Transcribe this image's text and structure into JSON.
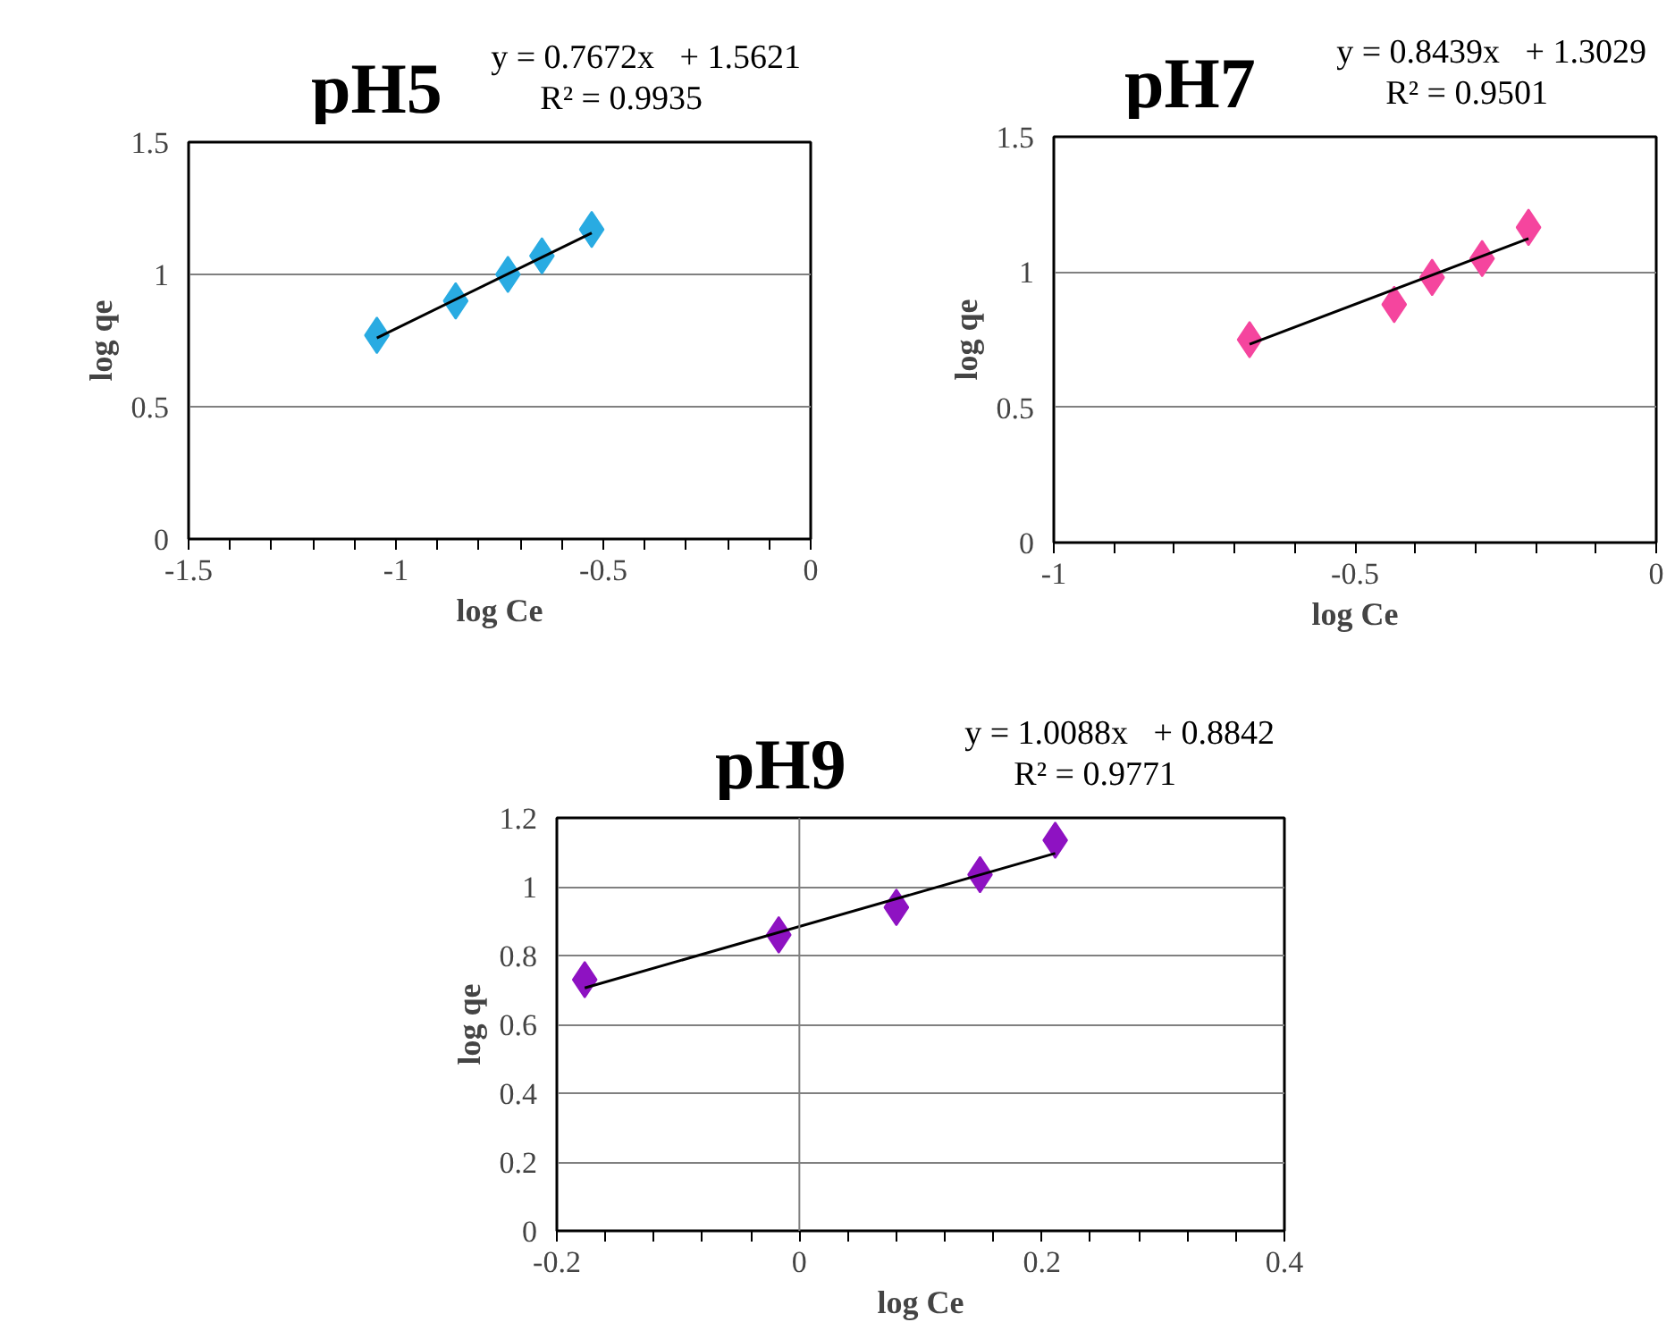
{
  "chart_data": [
    {
      "type": "scatter",
      "title": "pH5",
      "xlabel": "log Ce",
      "ylabel": "log qe",
      "annotations": [
        "y = 0.7672x   + 1.5621",
        "R² = 0.9935"
      ],
      "xlim": [
        -1.5,
        0
      ],
      "xticks": [
        -1.5,
        -1,
        -0.5,
        0
      ],
      "ylim": [
        0,
        1.5
      ],
      "yticks": [
        0,
        0.5,
        1,
        1.5
      ],
      "grid": "y",
      "marker": "diamond",
      "series": [
        {
          "color": "#29abe2",
          "x": [
            -1.046,
            -0.856,
            -0.73,
            -0.648,
            -0.528
          ],
          "values": [
            0.77,
            0.9,
            1.0,
            1.07,
            1.17
          ]
        },
        {
          "type": "line",
          "color": "#000000",
          "marker": "none",
          "line_style": "solid",
          "x": [
            -1.046,
            -0.528
          ],
          "values": [
            0.76,
            1.157
          ]
        }
      ]
    },
    {
      "type": "scatter",
      "title": "pH7",
      "xlabel": "log Ce",
      "ylabel": "log qe",
      "annotations": [
        "y = 0.8439x   + 1.3029",
        "R² = 0.9501"
      ],
      "xlim": [
        -1,
        0
      ],
      "xticks": [
        -1,
        -0.5,
        0
      ],
      "ylim": [
        0,
        1.5
      ],
      "yticks": [
        0,
        0.5,
        1,
        1.5
      ],
      "grid": "y",
      "marker": "diamond",
      "series": [
        {
          "color": "#f5459e",
          "x": [
            -0.675,
            -0.435,
            -0.372,
            -0.289,
            -0.212
          ],
          "values": [
            0.75,
            0.88,
            0.98,
            1.05,
            1.165
          ]
        },
        {
          "type": "line",
          "color": "#000000",
          "marker": "none",
          "line_style": "solid",
          "x": [
            -0.675,
            -0.212
          ],
          "values": [
            0.733,
            1.124
          ]
        }
      ]
    },
    {
      "type": "scatter",
      "title": "pH9",
      "xlabel": "log Ce",
      "ylabel": "log qe",
      "annotations": [
        "y = 1.0088x   + 0.8842",
        "R² = 0.9771"
      ],
      "xlim": [
        -0.2,
        0.4
      ],
      "xticks": [
        -0.2,
        0,
        0.2,
        0.4
      ],
      "ylim": [
        0,
        1.2
      ],
      "yticks": [
        0,
        0.2,
        0.4,
        0.6,
        0.8,
        1,
        1.2
      ],
      "grid": "y",
      "marker": "diamond",
      "ref_lines": [
        {
          "axis": "x",
          "value": 0,
          "color": "#808080"
        }
      ],
      "series": [
        {
          "color": "#8e12c2",
          "x": [
            -0.177,
            -0.017,
            0.08,
            0.149,
            0.211
          ],
          "values": [
            0.73,
            0.86,
            0.94,
            1.035,
            1.135
          ]
        },
        {
          "type": "line",
          "color": "#000000",
          "marker": "none",
          "line_style": "solid",
          "x": [
            -0.177,
            0.211
          ],
          "values": [
            0.706,
            1.097
          ]
        }
      ]
    }
  ]
}
